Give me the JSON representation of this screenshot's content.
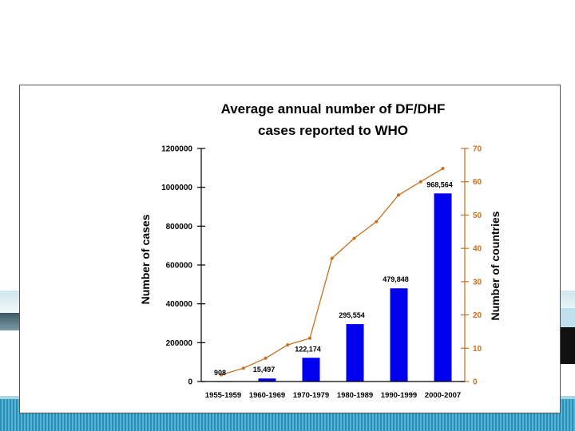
{
  "chart_data": {
    "type": "bar",
    "title": [
      "Average annual number of DF/DHF",
      "cases reported to WHO"
    ],
    "categories": [
      "1955-1959",
      "1960-1969",
      "1970-1979",
      "1980-1989",
      "1990-1999",
      "2000-2007"
    ],
    "series": [
      {
        "name": "",
        "type": "bar",
        "axis": "left",
        "values": [
          908,
          15497,
          122174,
          295554,
          479848,
          968564
        ],
        "labels": [
          "908",
          "15,497",
          "122,174",
          "295,554",
          "479,848",
          "968,564"
        ]
      },
      {
        "name": "",
        "type": "line",
        "axis": "right",
        "x": [
          0,
          1,
          2,
          3,
          4,
          5,
          6,
          7,
          8,
          9,
          10
        ],
        "values": [
          2,
          4,
          7,
          11,
          13,
          37,
          43,
          48,
          56,
          60,
          64
        ]
      }
    ],
    "ylabel": "Number of cases",
    "y2label": "Number of countries",
    "ylim": [
      0,
      1200000
    ],
    "yticks": [
      "0",
      "200000",
      "400000",
      "600000",
      "800000",
      "1000000",
      "1200000"
    ],
    "y2lim": [
      0,
      70
    ],
    "y2ticks": [
      "0",
      "10",
      "20",
      "30",
      "40",
      "50",
      "60",
      "70"
    ],
    "colors": {
      "bars": "#0000ee",
      "line": "#c8701e",
      "axis": "#000000",
      "axis2": "#c8701e"
    },
    "grid": false
  }
}
